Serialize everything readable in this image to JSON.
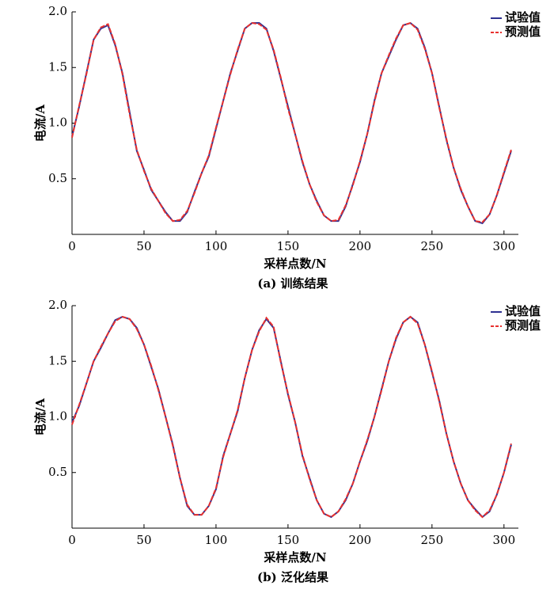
{
  "chart_data": [
    {
      "type": "line",
      "caption": "(a) 训练结果",
      "xlabel": "采样点数/N",
      "ylabel": "电流/A",
      "xlim": [
        0,
        310
      ],
      "ylim": [
        0,
        2
      ],
      "xticks": [
        0,
        50,
        100,
        150,
        200,
        250,
        300
      ],
      "yticks": [
        0.5,
        {
          "value": 1,
          "label": "1.0"
        },
        1.5,
        {
          "value": 2,
          "label": "2.0"
        }
      ],
      "x": [
        0,
        5,
        10,
        15,
        20,
        25,
        30,
        35,
        40,
        45,
        50,
        55,
        60,
        65,
        70,
        75,
        80,
        85,
        90,
        95,
        100,
        105,
        110,
        115,
        120,
        125,
        130,
        135,
        140,
        145,
        150,
        155,
        160,
        165,
        170,
        175,
        180,
        185,
        190,
        195,
        200,
        205,
        210,
        215,
        220,
        225,
        230,
        235,
        240,
        245,
        250,
        255,
        260,
        265,
        270,
        275,
        280,
        285,
        290,
        295,
        300,
        305
      ],
      "series": [
        {
          "name": "试验值",
          "color": "#2e3192",
          "dash": false,
          "values": [
            0.88,
            1.15,
            1.45,
            1.75,
            1.85,
            1.88,
            1.7,
            1.45,
            1.1,
            0.75,
            0.58,
            0.4,
            0.3,
            0.2,
            0.12,
            0.12,
            0.2,
            0.38,
            0.55,
            0.7,
            0.95,
            1.2,
            1.45,
            1.65,
            1.85,
            1.9,
            1.9,
            1.85,
            1.65,
            1.4,
            1.15,
            0.9,
            0.65,
            0.45,
            0.3,
            0.17,
            0.12,
            0.12,
            0.25,
            0.45,
            0.65,
            0.9,
            1.2,
            1.45,
            1.6,
            1.75,
            1.88,
            1.9,
            1.85,
            1.68,
            1.45,
            1.15,
            0.85,
            0.6,
            0.4,
            0.25,
            0.12,
            0.1,
            0.18,
            0.35,
            0.55,
            0.75
          ]
        },
        {
          "name": "预测值",
          "color": "#e8312f",
          "dash": true,
          "values": [
            0.87,
            1.16,
            1.44,
            1.75,
            1.86,
            1.89,
            1.71,
            1.44,
            1.08,
            0.76,
            0.57,
            0.41,
            0.3,
            0.19,
            0.12,
            0.13,
            0.21,
            0.37,
            0.55,
            0.71,
            0.96,
            1.2,
            1.44,
            1.66,
            1.85,
            1.9,
            1.89,
            1.84,
            1.66,
            1.41,
            1.13,
            0.9,
            0.66,
            0.45,
            0.29,
            0.17,
            0.12,
            0.13,
            0.26,
            0.44,
            0.66,
            0.9,
            1.19,
            1.45,
            1.61,
            1.76,
            1.88,
            1.9,
            1.84,
            1.67,
            1.45,
            1.14,
            0.86,
            0.6,
            0.41,
            0.25,
            0.12,
            0.11,
            0.18,
            0.35,
            0.56,
            0.76
          ]
        }
      ],
      "legend": "upper right"
    },
    {
      "type": "line",
      "caption": "(b) 泛化结果",
      "xlabel": "采样点数/N",
      "ylabel": "电流/A",
      "xlim": [
        0,
        310
      ],
      "ylim": [
        0,
        2
      ],
      "xticks": [
        0,
        50,
        100,
        150,
        200,
        250,
        300
      ],
      "yticks": [
        0.5,
        {
          "value": 1,
          "label": "1.0"
        },
        1.5,
        {
          "value": 2,
          "label": "2.0"
        }
      ],
      "x": [
        0,
        5,
        10,
        15,
        20,
        25,
        30,
        35,
        40,
        45,
        50,
        55,
        60,
        65,
        70,
        75,
        80,
        85,
        90,
        95,
        100,
        105,
        110,
        115,
        120,
        125,
        130,
        135,
        140,
        145,
        150,
        155,
        160,
        165,
        170,
        175,
        180,
        185,
        190,
        195,
        200,
        205,
        210,
        215,
        220,
        225,
        230,
        235,
        240,
        245,
        250,
        255,
        260,
        265,
        270,
        275,
        280,
        285,
        290,
        295,
        300,
        305
      ],
      "series": [
        {
          "name": "试验值",
          "color": "#2e3192",
          "dash": false,
          "values": [
            0.95,
            1.1,
            1.3,
            1.5,
            1.62,
            1.75,
            1.87,
            1.9,
            1.88,
            1.8,
            1.65,
            1.45,
            1.25,
            1.0,
            0.75,
            0.45,
            0.2,
            0.12,
            0.12,
            0.2,
            0.35,
            0.65,
            0.85,
            1.05,
            1.35,
            1.6,
            1.78,
            1.88,
            1.8,
            1.5,
            1.2,
            0.95,
            0.65,
            0.45,
            0.25,
            0.13,
            0.1,
            0.15,
            0.25,
            0.4,
            0.6,
            0.78,
            1.0,
            1.25,
            1.5,
            1.7,
            1.85,
            1.9,
            1.85,
            1.65,
            1.4,
            1.15,
            0.85,
            0.6,
            0.4,
            0.25,
            0.17,
            0.1,
            0.15,
            0.3,
            0.5,
            0.75
          ]
        },
        {
          "name": "预测值",
          "color": "#e8312f",
          "dash": true,
          "values": [
            0.93,
            1.11,
            1.3,
            1.5,
            1.63,
            1.75,
            1.86,
            1.9,
            1.88,
            1.79,
            1.65,
            1.46,
            1.24,
            1.0,
            0.74,
            0.45,
            0.21,
            0.12,
            0.12,
            0.2,
            0.36,
            0.64,
            0.85,
            1.06,
            1.35,
            1.6,
            1.77,
            1.89,
            1.81,
            1.49,
            1.21,
            0.95,
            0.66,
            0.44,
            0.25,
            0.13,
            0.1,
            0.15,
            0.26,
            0.4,
            0.6,
            0.79,
            1.0,
            1.24,
            1.5,
            1.71,
            1.85,
            1.9,
            1.84,
            1.65,
            1.41,
            1.14,
            0.85,
            0.6,
            0.4,
            0.25,
            0.16,
            0.1,
            0.16,
            0.3,
            0.5,
            0.76
          ]
        }
      ],
      "legend": "upper right"
    }
  ]
}
